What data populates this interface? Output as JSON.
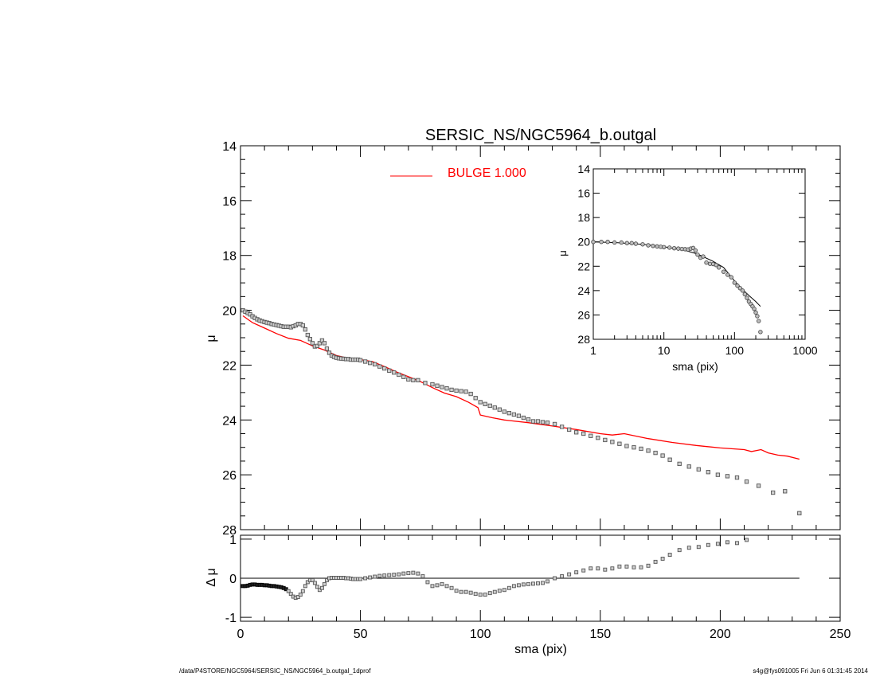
{
  "chart_data": [
    {
      "id": "main",
      "type": "scatter",
      "title": "SERSIC_NS/NGC5964_b.outgal",
      "xlabel": "",
      "ylabel": "μ",
      "xlim": [
        0,
        250
      ],
      "ylim": [
        28,
        14
      ],
      "y_inverted": true,
      "xticks": [
        0,
        50,
        100,
        150,
        200,
        250
      ],
      "yticks": [
        14,
        16,
        18,
        20,
        22,
        24,
        26,
        28
      ],
      "legend": {
        "placement": "top-center",
        "entries": [
          {
            "label": "BULGE  1.000",
            "color": "#ff0000"
          }
        ]
      },
      "series": [
        {
          "kind": "points",
          "x": [
            1,
            2,
            3,
            4,
            5,
            6,
            7,
            8,
            9,
            10,
            11,
            12,
            13,
            14,
            15,
            16,
            17,
            18,
            19,
            20,
            21,
            22,
            23,
            24,
            25,
            26,
            27,
            28,
            29,
            30,
            31,
            32,
            33,
            34,
            35,
            36,
            37,
            38,
            39,
            40,
            41,
            42,
            43,
            44,
            45,
            46,
            47,
            48,
            49,
            50,
            52,
            54,
            56,
            58,
            60,
            62,
            64,
            66,
            68,
            70,
            72,
            74,
            77,
            80,
            82,
            84,
            86,
            88,
            90,
            92,
            94,
            96,
            98,
            100,
            102,
            104,
            106,
            108,
            110,
            112,
            114,
            116,
            118,
            120,
            122,
            124,
            126,
            128,
            131,
            134,
            137,
            140,
            143,
            146,
            149,
            152,
            155,
            158,
            161,
            164,
            167,
            170,
            173,
            176,
            179,
            183,
            187,
            191,
            195,
            199,
            203,
            207,
            211,
            216,
            222,
            227,
            233
          ],
          "y": [
            20.0,
            20.05,
            20.1,
            20.15,
            20.22,
            20.28,
            20.33,
            20.37,
            20.4,
            20.43,
            20.45,
            20.47,
            20.5,
            20.52,
            20.54,
            20.56,
            20.58,
            20.6,
            20.6,
            20.6,
            20.62,
            20.58,
            20.55,
            20.5,
            20.5,
            20.55,
            20.7,
            20.9,
            21.05,
            21.2,
            21.32,
            21.3,
            21.2,
            21.1,
            21.2,
            21.4,
            21.55,
            21.65,
            21.7,
            21.73,
            21.75,
            21.76,
            21.77,
            21.78,
            21.78,
            21.8,
            21.8,
            21.8,
            21.8,
            21.82,
            21.87,
            21.92,
            21.97,
            22.05,
            22.12,
            22.2,
            22.27,
            22.35,
            22.43,
            22.52,
            22.55,
            22.55,
            22.65,
            22.7,
            22.75,
            22.8,
            22.85,
            22.9,
            22.93,
            22.95,
            22.97,
            23.05,
            23.2,
            23.35,
            23.42,
            23.48,
            23.55,
            23.62,
            23.7,
            23.75,
            23.8,
            23.85,
            23.92,
            23.98,
            24.05,
            24.05,
            24.08,
            24.1,
            24.15,
            24.25,
            24.35,
            24.45,
            24.5,
            24.58,
            24.65,
            24.73,
            24.8,
            24.87,
            24.95,
            25.0,
            25.05,
            25.12,
            25.2,
            25.3,
            25.45,
            25.6,
            25.7,
            25.8,
            25.9,
            26.0,
            26.05,
            26.1,
            26.25,
            26.4,
            26.65,
            26.6,
            27.4
          ]
        },
        {
          "kind": "model-line",
          "name": "BULGE  1.000",
          "color": "#ff0000",
          "x": [
            1,
            5,
            10,
            15,
            20,
            25,
            30,
            35,
            40,
            45,
            50,
            55,
            60,
            65,
            70,
            75,
            80,
            85,
            90,
            95,
            99,
            100,
            105,
            110,
            120,
            130,
            140,
            150,
            155,
            160,
            170,
            180,
            190,
            200,
            210,
            213,
            217,
            220,
            224,
            228,
            233
          ],
          "y": [
            20.2,
            20.45,
            20.65,
            20.85,
            21.02,
            21.1,
            21.3,
            21.45,
            21.65,
            21.75,
            21.8,
            21.87,
            22.05,
            22.25,
            22.42,
            22.6,
            22.82,
            23.02,
            23.15,
            23.35,
            23.55,
            23.82,
            23.92,
            24.0,
            24.1,
            24.22,
            24.35,
            24.5,
            24.55,
            24.5,
            24.68,
            24.82,
            24.93,
            25.02,
            25.08,
            25.15,
            25.08,
            25.2,
            25.28,
            25.32,
            25.43
          ]
        }
      ]
    },
    {
      "id": "residual",
      "type": "scatter",
      "xlabel": "sma (pix)",
      "ylabel": "Δ μ",
      "xlim": [
        0,
        250
      ],
      "ylim": [
        -1.1,
        1.1
      ],
      "xticks": [
        0,
        50,
        100,
        150,
        200,
        250
      ],
      "yticks": [
        1,
        0,
        -1
      ],
      "zero_line": true,
      "series": [
        {
          "kind": "points",
          "x": [
            1,
            2,
            3,
            4,
            5,
            6,
            7,
            8,
            9,
            10,
            11,
            12,
            13,
            14,
            15,
            16,
            17,
            18,
            19,
            20,
            21,
            22,
            23,
            24,
            25,
            26,
            27,
            28,
            29,
            30,
            31,
            32,
            33,
            34,
            35,
            36,
            37,
            38,
            39,
            40,
            41,
            42,
            43,
            44,
            45,
            46,
            47,
            48,
            49,
            50,
            52,
            54,
            56,
            58,
            60,
            62,
            64,
            66,
            68,
            70,
            72,
            74,
            76,
            78,
            80,
            82,
            84,
            86,
            88,
            90,
            92,
            94,
            96,
            98,
            100,
            102,
            104,
            106,
            108,
            110,
            112,
            114,
            116,
            118,
            120,
            122,
            124,
            126,
            128,
            131,
            134,
            137,
            140,
            143,
            146,
            149,
            152,
            155,
            158,
            161,
            164,
            167,
            170,
            173,
            176,
            179,
            183,
            187,
            191,
            195,
            199,
            203,
            207,
            211
          ],
          "y": [
            -0.2,
            -0.2,
            -0.19,
            -0.17,
            -0.16,
            -0.16,
            -0.17,
            -0.17,
            -0.17,
            -0.18,
            -0.18,
            -0.19,
            -0.2,
            -0.2,
            -0.21,
            -0.22,
            -0.23,
            -0.25,
            -0.28,
            -0.33,
            -0.4,
            -0.47,
            -0.5,
            -0.48,
            -0.42,
            -0.33,
            -0.2,
            -0.1,
            -0.05,
            -0.05,
            -0.12,
            -0.22,
            -0.3,
            -0.25,
            -0.15,
            -0.05,
            0.0,
            0.01,
            0.01,
            0.01,
            0.01,
            0.01,
            0.01,
            0.0,
            0.0,
            -0.01,
            -0.02,
            -0.02,
            -0.02,
            -0.02,
            0.0,
            0.02,
            0.04,
            0.06,
            0.07,
            0.08,
            0.09,
            0.1,
            0.12,
            0.13,
            0.14,
            0.12,
            0.05,
            -0.1,
            -0.2,
            -0.18,
            -0.15,
            -0.2,
            -0.25,
            -0.32,
            -0.35,
            -0.35,
            -0.37,
            -0.4,
            -0.42,
            -0.42,
            -0.38,
            -0.35,
            -0.32,
            -0.3,
            -0.25,
            -0.2,
            -0.18,
            -0.16,
            -0.15,
            -0.14,
            -0.13,
            -0.12,
            -0.08,
            0.0,
            0.05,
            0.1,
            0.15,
            0.2,
            0.25,
            0.25,
            0.22,
            0.25,
            0.3,
            0.3,
            0.28,
            0.28,
            0.32,
            0.42,
            0.5,
            0.6,
            0.72,
            0.78,
            0.8,
            0.85,
            0.88,
            0.92,
            0.9,
            0.98
          ]
        }
      ]
    },
    {
      "id": "inset",
      "type": "scatter",
      "xlabel": "sma (pix)",
      "ylabel": "μ",
      "x_scale": "log",
      "xlim": [
        1,
        1000
      ],
      "ylim": [
        28,
        14
      ],
      "y_inverted": true,
      "xticks": [
        1,
        10,
        100,
        1000
      ],
      "xtick_labels": [
        "1",
        "10",
        "100",
        "1000"
      ],
      "yticks": [
        14,
        16,
        18,
        20,
        22,
        24,
        26,
        28
      ],
      "series": [
        {
          "kind": "points",
          "x": [
            1,
            1.3,
            1.6,
            2,
            2.5,
            3,
            3.5,
            4,
            5,
            6,
            7,
            8,
            9,
            10,
            12,
            14,
            16,
            18,
            20,
            22,
            24,
            26,
            28,
            30,
            33,
            36,
            40,
            45,
            50,
            55,
            60,
            70,
            80,
            90,
            100,
            110,
            120,
            130,
            140,
            150,
            160,
            170,
            180,
            190,
            200,
            210,
            220,
            233
          ],
          "y": [
            20.0,
            20.0,
            20.0,
            20.05,
            20.05,
            20.1,
            20.1,
            20.15,
            20.2,
            20.28,
            20.33,
            20.37,
            20.4,
            20.43,
            20.47,
            20.52,
            20.55,
            20.58,
            20.6,
            20.62,
            20.55,
            20.5,
            20.7,
            21.05,
            21.3,
            21.2,
            21.7,
            21.8,
            21.82,
            21.9,
            22.1,
            22.45,
            22.7,
            22.9,
            23.35,
            23.6,
            23.8,
            24.0,
            24.3,
            24.6,
            24.9,
            25.1,
            25.3,
            25.5,
            25.8,
            26.1,
            26.5,
            27.4
          ]
        },
        {
          "kind": "model-line",
          "x": [
            1,
            2,
            5,
            10,
            20,
            30,
            50,
            70,
            100,
            130,
            160,
            200,
            233
          ],
          "y": [
            20.0,
            20.05,
            20.2,
            20.4,
            20.7,
            21.0,
            21.6,
            22.1,
            23.2,
            23.9,
            24.4,
            24.9,
            25.3
          ]
        }
      ]
    }
  ],
  "footer": {
    "left": "/data/P4STORE/NGC5964/SERSIC_NS/NGC5964_b.outgal_1dprof",
    "right": "s4g@fys091005  Fri Jun  6 01:31:45 2014"
  },
  "colors": {
    "model": "#ff0000",
    "points": "#555555",
    "axes": "#000000"
  }
}
